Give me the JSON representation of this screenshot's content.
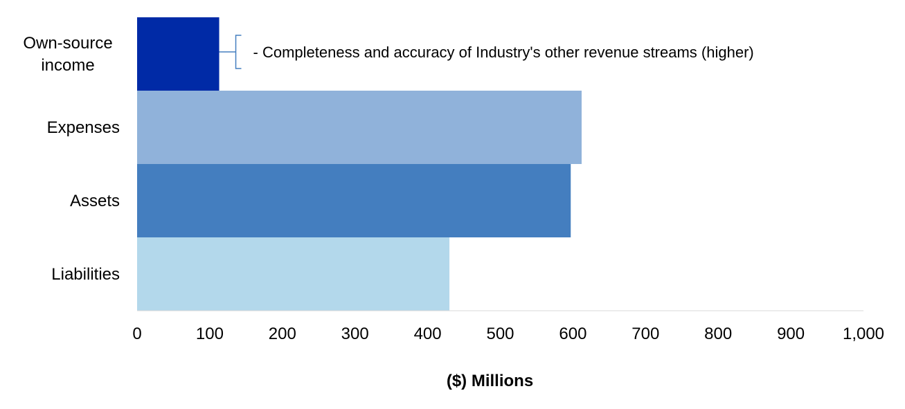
{
  "chart_data": {
    "type": "bar",
    "orientation": "horizontal",
    "categories": [
      "Own-source income",
      "Expenses",
      "Assets",
      "Liabilities"
    ],
    "category_lines": [
      [
        "Own-source",
        "income"
      ],
      [
        "Expenses"
      ],
      [
        "Assets"
      ],
      [
        "Liabilities"
      ]
    ],
    "values": [
      113,
      612,
      597,
      430
    ],
    "colors": [
      "#002aa6",
      "#90b2da",
      "#447ebf",
      "#b3d8eb"
    ],
    "xlim": [
      0,
      1000
    ],
    "ticks": [
      0,
      100,
      200,
      300,
      400,
      500,
      600,
      700,
      800,
      900,
      1000
    ],
    "tick_labels": [
      "0",
      "100",
      "200",
      "300",
      "400",
      "500",
      "600",
      "700",
      "800",
      "900",
      "1,000"
    ],
    "xlabel": "($) Millions",
    "ylabel": "",
    "title": "",
    "grid": false,
    "annotation": {
      "category": "Own-source income",
      "text": "- Completeness and accuracy of Industry's other revenue streams (higher)",
      "color": "#447ebf"
    }
  }
}
